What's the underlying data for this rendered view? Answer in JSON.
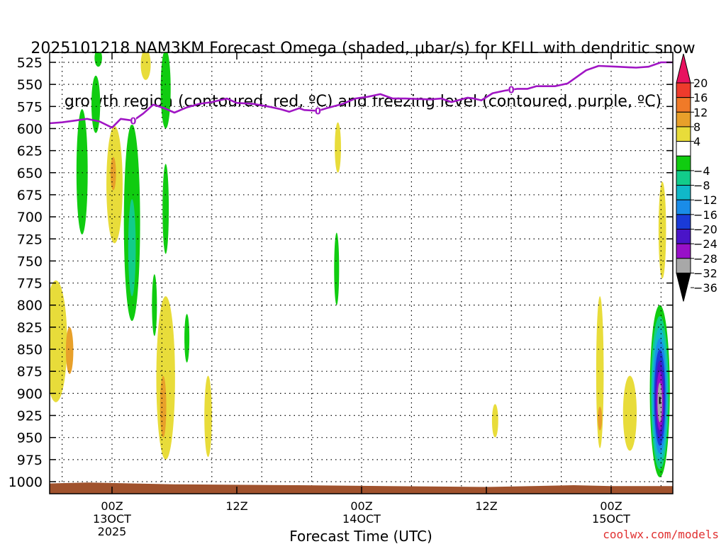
{
  "title": {
    "line1": "2025101218 NAM3KM Forecast Omega (shaded, μbar/s) for KFLL with dendritic snow",
    "line2": "growth region (contoured, red, ºC) and freezing level (contoured, purple, ºC)"
  },
  "credit": "coolwx.com/models",
  "chart_data": {
    "type": "heatmap",
    "xlabel": "Forecast Time (UTC)",
    "ylabel": "",
    "y_scale": "pressure (hPa), inverted",
    "ylim": [
      1020,
      510
    ],
    "xlim_hours": [
      -5,
      45
    ],
    "y_ticks": [
      525,
      550,
      575,
      600,
      625,
      650,
      675,
      700,
      725,
      750,
      775,
      800,
      825,
      850,
      875,
      900,
      925,
      950,
      975,
      1000
    ],
    "x_ticks": [
      {
        "h": 0,
        "lines": [
          "00Z",
          "13OCT",
          "2025"
        ]
      },
      {
        "h": 10,
        "lines": [
          "12Z"
        ]
      },
      {
        "h": 20,
        "lines": [
          "00Z",
          "14OCT"
        ]
      },
      {
        "h": 30,
        "lines": [
          "12Z"
        ]
      },
      {
        "h": 40,
        "lines": [
          "00Z",
          "15OCT"
        ]
      }
    ],
    "grid": true,
    "colorbar": {
      "labels": [
        20,
        16,
        12,
        8,
        4,
        -4,
        -8,
        -12,
        -16,
        -20,
        -24,
        -28,
        -32,
        -36
      ],
      "colors": [
        "#e8125f",
        "#ee3b2c",
        "#f07a28",
        "#e8a02a",
        "#e8dc3a",
        "#ffffff",
        "#10cc10",
        "#12cc8a",
        "#10b8c8",
        "#1a8ce8",
        "#1a3ad8",
        "#4a14c8",
        "#9810c8",
        "#a8a8a8",
        "#000000"
      ]
    },
    "freezing_level": {
      "name": "freezing level",
      "color": "#a015c4",
      "label": "0",
      "label_hours": [
        1.7,
        16.5,
        32.0
      ],
      "points": [
        [
          -5,
          594
        ],
        [
          -4,
          593
        ],
        [
          -3,
          591
        ],
        [
          -2,
          589
        ],
        [
          -1,
          592
        ],
        [
          0,
          599
        ],
        [
          0.7,
          589
        ],
        [
          1.7,
          591
        ],
        [
          2.5,
          583
        ],
        [
          3.3,
          573
        ],
        [
          4.2,
          577
        ],
        [
          5,
          582
        ],
        [
          6,
          576
        ],
        [
          7,
          572
        ],
        [
          8,
          570
        ],
        [
          9.2,
          566
        ],
        [
          10,
          571
        ],
        [
          11.3,
          572
        ],
        [
          12.5,
          575
        ],
        [
          13.5,
          578
        ],
        [
          14.2,
          581
        ],
        [
          15.0,
          577
        ],
        [
          15.4,
          579
        ],
        [
          16.5,
          580
        ],
        [
          17.2,
          577
        ],
        [
          18.5,
          572
        ],
        [
          19.5,
          566
        ],
        [
          20.5,
          564
        ],
        [
          21.5,
          561
        ],
        [
          22.5,
          566
        ],
        [
          23.5,
          566
        ],
        [
          25.5,
          567
        ],
        [
          26.4,
          566
        ],
        [
          27.2,
          570
        ],
        [
          28.5,
          565
        ],
        [
          29.0,
          566
        ],
        [
          29.6,
          568
        ],
        [
          30.5,
          560
        ],
        [
          31.5,
          557
        ],
        [
          32.5,
          555
        ],
        [
          33.3,
          555
        ],
        [
          34.0,
          552
        ],
        [
          35.5,
          552
        ],
        [
          36.5,
          549
        ],
        [
          38.0,
          534
        ],
        [
          39.0,
          529
        ],
        [
          40.5,
          530
        ],
        [
          42.0,
          531
        ],
        [
          43.0,
          530
        ],
        [
          44.0,
          525
        ],
        [
          45.0,
          525
        ]
      ]
    },
    "surface_pressure": {
      "name": "terrain",
      "color": "#a0522d",
      "points": [
        [
          -5,
          1002
        ],
        [
          -2,
          1001
        ],
        [
          5,
          1003
        ],
        [
          15,
          1004
        ],
        [
          22,
          1005
        ],
        [
          30,
          1006
        ],
        [
          37,
          1004
        ],
        [
          40,
          1005
        ],
        [
          45,
          1005
        ]
      ]
    },
    "omega_features": [
      {
        "t": -4.5,
        "p1": 772,
        "p2": 910,
        "w": 0.9,
        "v": 5
      },
      {
        "t": -3.4,
        "p1": 825,
        "p2": 878,
        "w": 0.3,
        "v": 9
      },
      {
        "t": -2.4,
        "p1": 578,
        "p2": 720,
        "w": 0.45,
        "v": -5
      },
      {
        "t": -1.3,
        "p1": 540,
        "p2": 605,
        "w": 0.35,
        "v": -5
      },
      {
        "t": -1.1,
        "p1": 510,
        "p2": 530,
        "w": 0.3,
        "v": -5
      },
      {
        "t": 0.2,
        "p1": 597,
        "p2": 730,
        "w": 0.65,
        "v": 5
      },
      {
        "t": 0.1,
        "p1": 632,
        "p2": 670,
        "w": 0.22,
        "v": 9
      },
      {
        "t": 1.6,
        "p1": 595,
        "p2": 818,
        "w": 0.65,
        "v": -5
      },
      {
        "t": 1.6,
        "p1": 680,
        "p2": 790,
        "w": 0.3,
        "v": -9
      },
      {
        "t": 2.7,
        "p1": 510,
        "p2": 545,
        "w": 0.4,
        "v": 5
      },
      {
        "t": 4.3,
        "p1": 510,
        "p2": 600,
        "w": 0.4,
        "v": -5
      },
      {
        "t": 4.3,
        "p1": 640,
        "p2": 742,
        "w": 0.25,
        "v": -5
      },
      {
        "t": 3.4,
        "p1": 765,
        "p2": 835,
        "w": 0.2,
        "v": -5
      },
      {
        "t": 4.3,
        "p1": 790,
        "p2": 975,
        "w": 0.75,
        "v": 5
      },
      {
        "t": 4.1,
        "p1": 880,
        "p2": 950,
        "w": 0.25,
        "v": 9
      },
      {
        "t": 6.0,
        "p1": 810,
        "p2": 865,
        "w": 0.2,
        "v": -5
      },
      {
        "t": 7.7,
        "p1": 880,
        "p2": 972,
        "w": 0.3,
        "v": 5
      },
      {
        "t": 18.1,
        "p1": 593,
        "p2": 650,
        "w": 0.25,
        "v": 5
      },
      {
        "t": 18.0,
        "p1": 718,
        "p2": 800,
        "w": 0.2,
        "v": -5
      },
      {
        "t": 30.7,
        "p1": 912,
        "p2": 950,
        "w": 0.25,
        "v": 5
      },
      {
        "t": 39.1,
        "p1": 790,
        "p2": 962,
        "w": 0.3,
        "v": 5
      },
      {
        "t": 39.1,
        "p1": 915,
        "p2": 942,
        "w": 0.1,
        "v": 9
      },
      {
        "t": 41.5,
        "p1": 880,
        "p2": 965,
        "w": 0.55,
        "v": 5
      },
      {
        "t": 44.1,
        "p1": 660,
        "p2": 770,
        "w": 0.3,
        "v": 5
      },
      {
        "t": 43.9,
        "p1": 800,
        "p2": 995,
        "w": 0.8,
        "v": -34
      }
    ]
  }
}
